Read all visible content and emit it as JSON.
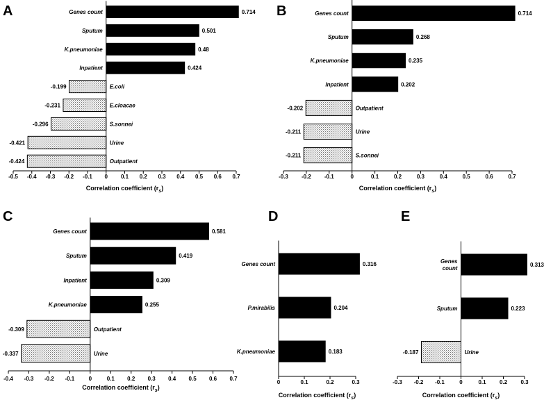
{
  "figure": {
    "colors": {
      "positive": "#000000",
      "negative_fill": "#e6e6e6",
      "stroke": "#000000"
    },
    "xlabel_main": "Correlation coefficient (r",
    "xlabel_sub": "s",
    "xlabel_close": ")"
  },
  "chart_data": [
    {
      "panel": "A",
      "type": "bar",
      "orientation": "horizontal",
      "xlabel": "Correlation coefficient (rs)",
      "xlim": [
        -0.5,
        0.7
      ],
      "ticks": [
        "-0.5",
        "-0.4",
        "-0.3",
        "-0.2",
        "-0.1",
        "0",
        "0.1",
        "0.2",
        "0.3",
        "0.4",
        "0.5",
        "0.6",
        "0.7"
      ],
      "categories": [
        "Genes count",
        "Sputum",
        "K.pneumoniae",
        "Inpatient",
        "E.coli",
        "E.cloacae",
        "S.sonnei",
        "Urine",
        "Outpatient"
      ],
      "values": [
        0.714,
        0.501,
        0.48,
        0.424,
        -0.199,
        -0.231,
        -0.296,
        -0.421,
        -0.424
      ],
      "value_labels": [
        "0.714",
        "0.501",
        "0.48",
        "0.424",
        "-0.199",
        "-0.231",
        "-0.296",
        "-0.421",
        "-0.424"
      ]
    },
    {
      "panel": "B",
      "type": "bar",
      "orientation": "horizontal",
      "xlabel": "Correlation coefficient (rs)",
      "xlim": [
        -0.3,
        0.7
      ],
      "ticks": [
        "-0.3",
        "-0.2",
        "-0.1",
        "0",
        "0.1",
        "0.2",
        "0.3",
        "0.4",
        "0.5",
        "0.6",
        "0.7"
      ],
      "categories": [
        "Genes count",
        "Sputum",
        "K.pneumoniae",
        "Inpatient",
        "Outpatient",
        "Urine",
        "S.sonnei"
      ],
      "values": [
        0.714,
        0.268,
        0.235,
        0.202,
        -0.202,
        -0.211,
        -0.211
      ],
      "value_labels": [
        "0.714",
        "0.268",
        "0.235",
        "0.202",
        "-0.202",
        "-0.211",
        "-0.211"
      ]
    },
    {
      "panel": "C",
      "type": "bar",
      "orientation": "horizontal",
      "xlabel": "Correlation coefficient (rs)",
      "xlim": [
        -0.4,
        0.7
      ],
      "ticks": [
        "-0.4",
        "-0.3",
        "-0.2",
        "-0.1",
        "0",
        "0.1",
        "0.2",
        "0.3",
        "0.4",
        "0.5",
        "0.6",
        "0.7"
      ],
      "categories": [
        "Genes count",
        "Sputum",
        "Inpatient",
        "K.pneumoniae",
        "Outpatient",
        "Urine"
      ],
      "values": [
        0.581,
        0.419,
        0.309,
        0.255,
        -0.309,
        -0.337
      ],
      "value_labels": [
        "0.581",
        "0.419",
        "0.309",
        "0.255",
        "-0.309",
        "-0.337"
      ]
    },
    {
      "panel": "D",
      "type": "bar",
      "orientation": "horizontal",
      "xlabel": "Correlation coefficient (rs)",
      "xlim": [
        0,
        0.3
      ],
      "ticks": [
        "0",
        "0.1",
        "0.2",
        "0.3"
      ],
      "categories": [
        "Genes count",
        "P.mirabilis",
        "K.pneumoniae"
      ],
      "values": [
        0.316,
        0.204,
        0.183
      ],
      "value_labels": [
        "0.316",
        "0.204",
        "0.183"
      ]
    },
    {
      "panel": "E",
      "type": "bar",
      "orientation": "horizontal",
      "xlabel": "Correlation coefficient (rs)",
      "xlim": [
        -0.3,
        0.3
      ],
      "ticks": [
        "-0.3",
        "-0.2",
        "-0.1",
        "0",
        "0.1",
        "0.2",
        "0.3"
      ],
      "categories": [
        "Genes count",
        "Sputum",
        "Urine"
      ],
      "category_lines": [
        [
          "Genes",
          "count"
        ],
        [
          "Sputum"
        ],
        [
          "Urine"
        ]
      ],
      "values": [
        0.313,
        0.223,
        -0.187
      ],
      "value_labels": [
        "0.313",
        "0.223",
        "-0.187"
      ]
    }
  ]
}
